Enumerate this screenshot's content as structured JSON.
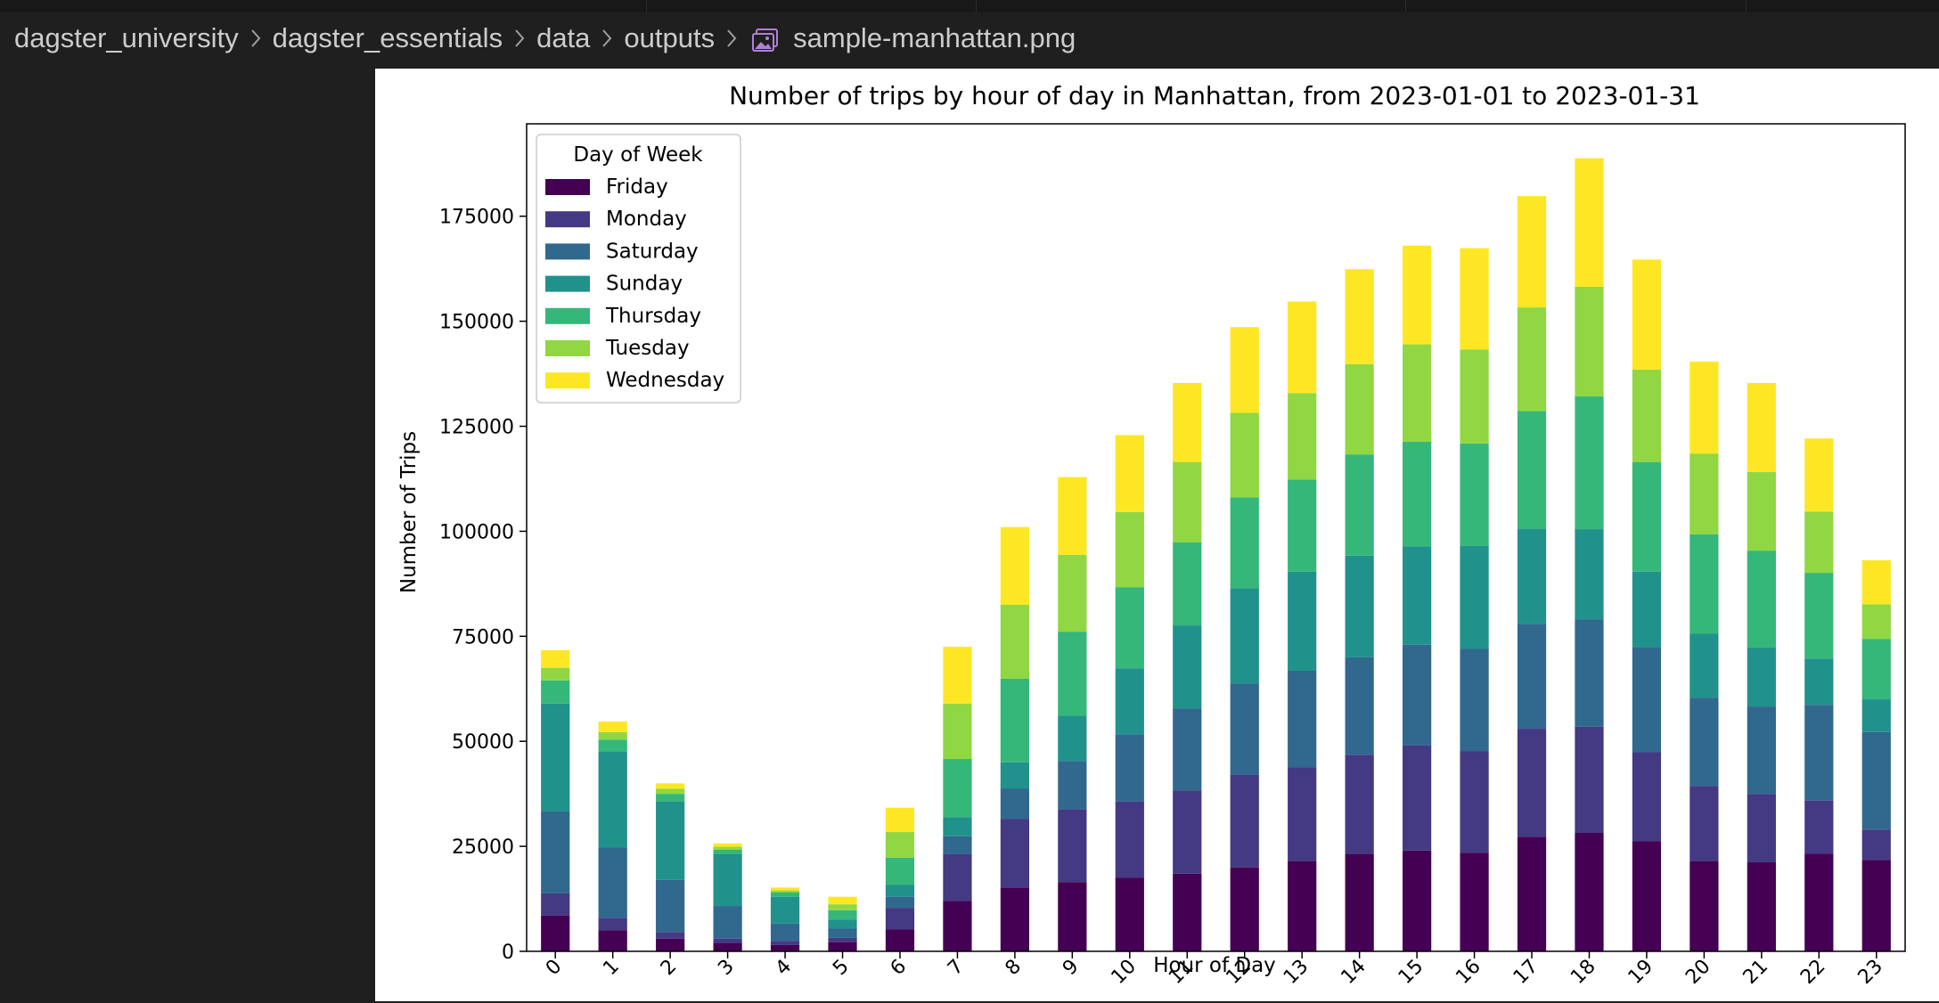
{
  "breadcrumb": {
    "items": [
      "dagster_university",
      "dagster_essentials",
      "data",
      "outputs"
    ],
    "file_name": "sample-manhattan.png",
    "file_icon": "image-file-icon"
  },
  "colors": {
    "Friday": "#440154",
    "Monday": "#443983",
    "Saturday": "#31688e",
    "Sunday": "#21918c",
    "Thursday": "#35b779",
    "Tuesday": "#90d743",
    "Wednesday": "#fde725"
  },
  "chart_data": {
    "type": "bar",
    "stacked": true,
    "title": "Number of trips by hour of day in Manhattan, from 2023-01-01 to 2023-01-31",
    "xlabel": "Hour of Day",
    "ylabel": "Number of Trips",
    "ylim": [
      0,
      197000
    ],
    "yticks": [
      0,
      25000,
      50000,
      75000,
      100000,
      125000,
      150000,
      175000
    ],
    "legend_title": "Day of Week",
    "legend_position": "top-left",
    "categories": [
      "0",
      "1",
      "2",
      "3",
      "4",
      "5",
      "6",
      "7",
      "8",
      "9",
      "10",
      "11",
      "12",
      "13",
      "14",
      "15",
      "16",
      "17",
      "18",
      "19",
      "20",
      "21",
      "22",
      "23"
    ],
    "series": [
      {
        "name": "Friday",
        "values": [
          8500,
          5000,
          3000,
          2000,
          1500,
          2200,
          5200,
          12000,
          15200,
          16500,
          17500,
          18500,
          20000,
          21500,
          23200,
          24000,
          23500,
          27300,
          28200,
          26200,
          21500,
          21200,
          23300,
          21800
        ]
      },
      {
        "name": "Monday",
        "values": [
          5300,
          3000,
          1600,
          1000,
          1000,
          1000,
          5100,
          11200,
          16300,
          17300,
          18200,
          19800,
          22000,
          22300,
          23600,
          25000,
          24200,
          25700,
          25300,
          21200,
          17900,
          16300,
          12600,
          7200
        ]
      },
      {
        "name": "Saturday",
        "values": [
          19500,
          16700,
          12400,
          7800,
          4100,
          2200,
          2700,
          4200,
          7200,
          11500,
          16000,
          19500,
          21800,
          23000,
          23200,
          24000,
          24300,
          25000,
          25500,
          25000,
          21000,
          20800,
          22800,
          23200
        ]
      },
      {
        "name": "Sunday",
        "values": [
          25700,
          22800,
          18700,
          12400,
          6400,
          2200,
          2800,
          4500,
          6300,
          10800,
          15700,
          19800,
          22600,
          23600,
          24200,
          23400,
          24500,
          22600,
          21500,
          18000,
          15200,
          14000,
          11000,
          7800
        ]
      },
      {
        "name": "Thursday",
        "values": [
          5500,
          2900,
          1800,
          1000,
          1000,
          2200,
          6500,
          13900,
          19900,
          20000,
          19300,
          19800,
          21700,
          21900,
          24100,
          24900,
          24400,
          28000,
          31600,
          26100,
          23700,
          23100,
          20400,
          14400
        ]
      },
      {
        "name": "Tuesday",
        "values": [
          3000,
          1800,
          1200,
          700,
          500,
          1400,
          6100,
          13200,
          17600,
          18300,
          17900,
          19100,
          20100,
          20600,
          21500,
          23200,
          22400,
          24700,
          26100,
          22000,
          19200,
          18700,
          14600,
          8200
        ]
      },
      {
        "name": "Wednesday",
        "values": [
          4200,
          2500,
          1300,
          800,
          700,
          1800,
          5800,
          13500,
          18500,
          18500,
          18300,
          18800,
          20400,
          21800,
          22600,
          23500,
          24100,
          26500,
          30600,
          26200,
          21900,
          21200,
          17400,
          10500
        ]
      }
    ]
  }
}
